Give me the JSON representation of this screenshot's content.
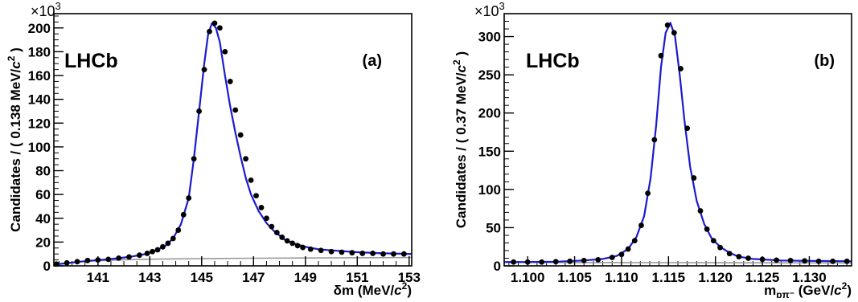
{
  "chart_data": [
    {
      "type": "scatter",
      "panel_label": "(a)",
      "experiment_label": "LHCb",
      "ylabel": "Candidates / ( 0.138  MeV/c² )",
      "ylabel_parts": {
        "pre": "Candidates / ( 0.138  MeV/",
        "c": "c",
        "sup": "2",
        "post": " )"
      },
      "y_multiplier": {
        "base": "×10",
        "exp": "3"
      },
      "xlabel_parts": {
        "pre": "δm (MeV/",
        "c": "c",
        "sup": "2",
        "post": ")"
      },
      "xlim": [
        139.3,
        153.1
      ],
      "ylim": [
        0,
        212
      ],
      "x_ticks": [
        141,
        143,
        145,
        147,
        149,
        151,
        153
      ],
      "x_tick_labels": [
        "141",
        "143",
        "145",
        "147",
        "149",
        "151",
        "153"
      ],
      "y_ticks": [
        0,
        20,
        40,
        60,
        80,
        100,
        120,
        140,
        160,
        180,
        200
      ],
      "y_tick_labels": [
        "0",
        "20",
        "40",
        "60",
        "80",
        "100",
        "120",
        "140",
        "160",
        "180",
        "200"
      ],
      "x_minor_step": 0.5,
      "y_minor_step": 5,
      "series": [
        {
          "role": "data",
          "color": "#000000",
          "x": [
            139.4,
            139.8,
            140.2,
            140.6,
            141.0,
            141.4,
            141.8,
            142.2,
            142.6,
            142.9,
            143.1,
            143.3,
            143.5,
            143.7,
            143.9,
            144.1,
            144.3,
            144.5,
            144.7,
            144.9,
            145.1,
            145.3,
            145.5,
            145.7,
            145.9,
            146.1,
            146.3,
            146.5,
            146.7,
            146.9,
            147.1,
            147.3,
            147.5,
            147.7,
            147.9,
            148.1,
            148.3,
            148.5,
            148.7,
            148.9,
            149.2,
            149.6,
            150.0,
            150.4,
            150.8,
            151.2,
            151.6,
            152.0,
            152.4,
            152.8
          ],
          "y": [
            1.5,
            2.5,
            3.5,
            4.5,
            5,
            5.5,
            6.5,
            7.5,
            9,
            10.5,
            12,
            13.5,
            16,
            19,
            23,
            30,
            43,
            57,
            90,
            130,
            165,
            197,
            204,
            200,
            180,
            155,
            131,
            110,
            90,
            72,
            59,
            49,
            40,
            33,
            28,
            24,
            21,
            19,
            17,
            15.5,
            14,
            13,
            12,
            11.5,
            11,
            10.5,
            10.5,
            10,
            10,
            10
          ]
        },
        {
          "role": "fit",
          "color": "#1a1ad0",
          "x": [
            139.3,
            139.8,
            140.3,
            140.8,
            141.3,
            141.8,
            142.3,
            142.8,
            143.2,
            143.6,
            143.9,
            144.2,
            144.5,
            144.7,
            144.9,
            145.1,
            145.25,
            145.4,
            145.55,
            145.7,
            145.9,
            146.1,
            146.3,
            146.5,
            146.7,
            146.9,
            147.2,
            147.5,
            147.8,
            148.2,
            148.6,
            149.0,
            149.5,
            150.0,
            151.0,
            152.0,
            153.1
          ],
          "y": [
            1.0,
            2.3,
            3.5,
            4.5,
            5.3,
            6.4,
            7.8,
            9.8,
            12.5,
            17,
            23,
            35,
            57,
            90,
            130,
            170,
            195,
            204,
            200,
            188,
            160,
            134,
            112,
            92,
            74,
            60,
            46,
            36,
            29,
            22,
            18.5,
            16,
            14,
            13,
            11.5,
            10.5,
            10
          ]
        },
        {
          "role": "background",
          "color": "#999999",
          "x": [
            139.3,
            140.0,
            141.0,
            142.0,
            143.0,
            144.0,
            145.0,
            147.0,
            149.0,
            151.0,
            153.1
          ],
          "y": [
            1.0,
            3.0,
            4.3,
            5.1,
            5.6,
            5.9,
            6.1,
            6.4,
            6.6,
            6.8,
            7.0
          ]
        }
      ]
    },
    {
      "type": "scatter",
      "panel_label": "(b)",
      "experiment_label": "LHCb",
      "ylabel": "Candidates / ( 0.37  MeV/c² )",
      "ylabel_parts": {
        "pre": "Candidates / ( 0.37  MeV/",
        "c": "c",
        "sup": "2",
        "post": " )"
      },
      "y_multiplier": {
        "base": "×10",
        "exp": "3"
      },
      "xlabel_parts": {
        "pre": "m",
        "sub": "pπ⁻",
        "mid": " (GeV/",
        "c": "c",
        "sup": "2",
        "post": ")"
      },
      "xlim": [
        1.0975,
        1.1345
      ],
      "ylim": [
        0,
        330
      ],
      "x_ticks": [
        1.1,
        1.105,
        1.11,
        1.115,
        1.12,
        1.125,
        1.13
      ],
      "x_tick_labels": [
        "1.100",
        "1.105",
        "1.110",
        "1.115",
        "1.120",
        "1.125",
        "1.130"
      ],
      "y_ticks": [
        0,
        50,
        100,
        150,
        200,
        250,
        300
      ],
      "y_tick_labels": [
        "0",
        "50",
        "100",
        "150",
        "200",
        "250",
        "300"
      ],
      "x_minor_step": 0.001,
      "y_minor_step": 10,
      "series": [
        {
          "role": "data",
          "color": "#000000",
          "x": [
            1.0985,
            1.1,
            1.1015,
            1.103,
            1.1045,
            1.106,
            1.1075,
            1.109,
            1.11,
            1.1107,
            1.1114,
            1.1121,
            1.1128,
            1.1135,
            1.1142,
            1.1149,
            1.1156,
            1.1163,
            1.117,
            1.1177,
            1.1184,
            1.1191,
            1.1198,
            1.1205,
            1.1215,
            1.1225,
            1.1235,
            1.125,
            1.1265,
            1.128,
            1.1295,
            1.131,
            1.1325,
            1.134
          ],
          "y": [
            5,
            5,
            5,
            5.5,
            6,
            7,
            8,
            11,
            15,
            22,
            33,
            53,
            95,
            165,
            275,
            315,
            305,
            258,
            180,
            115,
            72,
            48,
            33,
            24,
            16,
            12,
            10,
            8.5,
            7.5,
            7,
            6.5,
            6,
            6,
            6
          ]
        },
        {
          "role": "fit",
          "color": "#1a1ad0",
          "x": [
            1.0975,
            1.1,
            1.103,
            1.106,
            1.108,
            1.1095,
            1.1107,
            1.1116,
            1.1124,
            1.1131,
            1.1137,
            1.1142,
            1.1147,
            1.1152,
            1.1157,
            1.1162,
            1.1167,
            1.1173,
            1.118,
            1.1188,
            1.1196,
            1.1205,
            1.1215,
            1.1225,
            1.124,
            1.127,
            1.13,
            1.1345
          ],
          "y": [
            5,
            5,
            5.5,
            7,
            9,
            13,
            22,
            38,
            65,
            115,
            185,
            260,
            305,
            318,
            300,
            250,
            190,
            130,
            85,
            55,
            36,
            25,
            17,
            12,
            9,
            7,
            6.5,
            6
          ]
        },
        {
          "role": "background",
          "color": "#999999",
          "x": [
            1.0975,
            1.105,
            1.115,
            1.125,
            1.1345
          ],
          "y": [
            4.5,
            4.3,
            4.2,
            4.0,
            3.8
          ]
        }
      ]
    }
  ]
}
